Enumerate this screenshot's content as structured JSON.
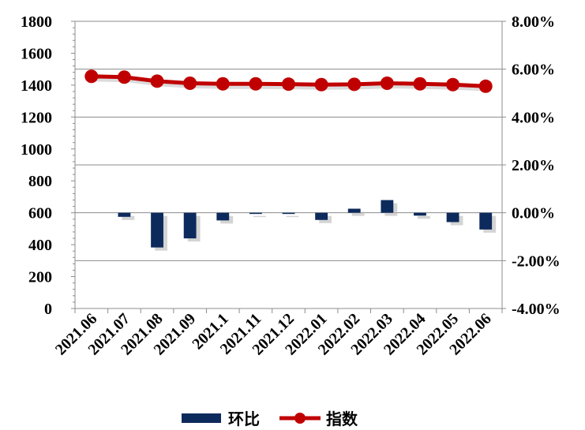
{
  "chart_data": {
    "type": "bar+line",
    "categories": [
      "2021.06",
      "2021.07",
      "2021.08",
      "2021.09",
      "2021.1",
      "2021.11",
      "2021.12",
      "2022.01",
      "2022.02",
      "2022.03",
      "2022.04",
      "2022.05",
      "2022.06"
    ],
    "series": [
      {
        "name": "环比",
        "type": "bar",
        "axis": "right",
        "color": "#0d2a5c",
        "values": [
          null,
          -0.17,
          -1.45,
          -1.07,
          -0.32,
          -0.01,
          -0.05,
          -0.3,
          0.17,
          0.53,
          -0.12,
          -0.39,
          -0.7
        ]
      },
      {
        "name": "指数",
        "type": "line",
        "axis": "left",
        "color": "#c00000",
        "values": [
          1455,
          1450,
          1425,
          1412,
          1408,
          1408,
          1406,
          1403,
          1405,
          1412,
          1408,
          1403,
          1393
        ]
      }
    ],
    "left_axis": {
      "min": 0,
      "max": 1800,
      "step": 200,
      "tick_labels": [
        "0",
        "200",
        "400",
        "600",
        "800",
        "1000",
        "1200",
        "1400",
        "1600",
        "1800"
      ]
    },
    "right_axis": {
      "min": -4,
      "max": 8,
      "step": 2,
      "tick_labels": [
        "-4.00%",
        "-2.00%",
        "0.00%",
        "2.00%",
        "4.00%",
        "6.00%",
        "8.00%"
      ]
    },
    "grid": "horizontal",
    "legend": {
      "position": "bottom",
      "items": [
        "环比",
        "指数"
      ]
    }
  }
}
